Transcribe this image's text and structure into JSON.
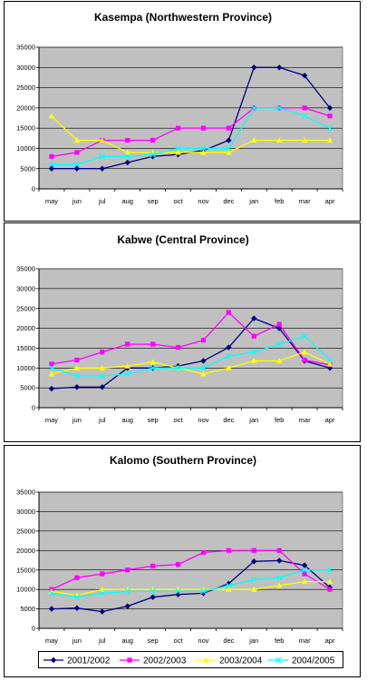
{
  "colors": {
    "plot_bg": "#c0c0c0",
    "series": [
      "#000080",
      "#ff00ff",
      "#ffff00",
      "#00ffff"
    ]
  },
  "legend": {
    "entries": [
      "2001/2002",
      "2002/2003",
      "2003/2004",
      "2004/2005"
    ],
    "markers": [
      "diamond",
      "square",
      "triangle",
      "x"
    ],
    "placement": "bottom"
  },
  "chart_data": [
    {
      "type": "line",
      "title": "Kasempa (Northwestern Province)",
      "categories": [
        "may",
        "jun",
        "jul",
        "aug",
        "sep",
        "oct",
        "nov",
        "dec",
        "jan",
        "feb",
        "mar",
        "apr"
      ],
      "ylim": [
        0,
        35000
      ],
      "yticks": [
        0,
        5000,
        10000,
        15000,
        20000,
        25000,
        30000,
        35000
      ],
      "grid": true,
      "series": [
        {
          "name": "2001/2002",
          "values": [
            5000,
            5000,
            5000,
            6500,
            8000,
            8500,
            9500,
            12000,
            30000,
            30000,
            28000,
            20000
          ]
        },
        {
          "name": "2002/2003",
          "values": [
            8000,
            9000,
            12000,
            12000,
            12000,
            15000,
            15000,
            15000,
            20000,
            20000,
            20000,
            18000
          ]
        },
        {
          "name": "2003/2004",
          "values": [
            18000,
            12000,
            12000,
            9000,
            9000,
            9000,
            9000,
            9000,
            12000,
            12000,
            12000,
            12000
          ]
        },
        {
          "name": "2004/2005",
          "values": [
            6000,
            6000,
            8000,
            8000,
            8500,
            10000,
            10000,
            10000,
            20000,
            20000,
            18000,
            15000
          ]
        }
      ]
    },
    {
      "type": "line",
      "title": "Kabwe (Central Province)",
      "categories": [
        "may",
        "jun",
        "jul",
        "aug",
        "sep",
        "oct",
        "nov",
        "dec",
        "jan",
        "feb",
        "mar",
        "apr"
      ],
      "ylim": [
        0,
        35000
      ],
      "yticks": [
        0,
        5000,
        10000,
        15000,
        20000,
        25000,
        30000,
        35000
      ],
      "grid": true,
      "series": [
        {
          "name": "2001/2002",
          "values": [
            4800,
            5200,
            5200,
            10000,
            10000,
            10500,
            11800,
            15200,
            22500,
            20000,
            11800,
            10000
          ]
        },
        {
          "name": "2002/2003",
          "values": [
            11000,
            12000,
            14000,
            16000,
            16000,
            15200,
            17000,
            24000,
            18000,
            21000,
            12000,
            10800
          ]
        },
        {
          "name": "2003/2004",
          "values": [
            8500,
            10000,
            10000,
            10500,
            11500,
            10000,
            8500,
            10000,
            11800,
            11800,
            14000,
            11000
          ]
        },
        {
          "name": "2004/2005",
          "values": [
            10000,
            8000,
            8000,
            8500,
            10000,
            10000,
            10000,
            13000,
            14000,
            16000,
            18000,
            12000
          ]
        }
      ]
    },
    {
      "type": "line",
      "title": "Kalomo (Southern Province)",
      "categories": [
        "may",
        "jun",
        "jul",
        "aug",
        "sep",
        "oct",
        "nov",
        "dec",
        "jan",
        "feb",
        "mar",
        "apr"
      ],
      "ylim": [
        0,
        35000
      ],
      "yticks": [
        0,
        5000,
        10000,
        15000,
        20000,
        25000,
        30000,
        35000
      ],
      "grid": true,
      "series": [
        {
          "name": "2001/2002",
          "values": [
            5000,
            5200,
            4300,
            5700,
            8000,
            8700,
            9000,
            11500,
            17200,
            17400,
            16200,
            10500
          ]
        },
        {
          "name": "2002/2003",
          "values": [
            10000,
            13000,
            14000,
            15000,
            16000,
            16400,
            19500,
            20000,
            20000,
            20000,
            14000,
            10000
          ]
        },
        {
          "name": "2003/2004",
          "values": [
            9500,
            8500,
            10000,
            10000,
            10000,
            10000,
            10000,
            10000,
            10000,
            11000,
            12000,
            12000
          ]
        },
        {
          "name": "2004/2005",
          "values": [
            9000,
            8000,
            9000,
            9500,
            9500,
            9500,
            9500,
            11000,
            12500,
            13000,
            15000,
            15000
          ]
        }
      ]
    }
  ]
}
